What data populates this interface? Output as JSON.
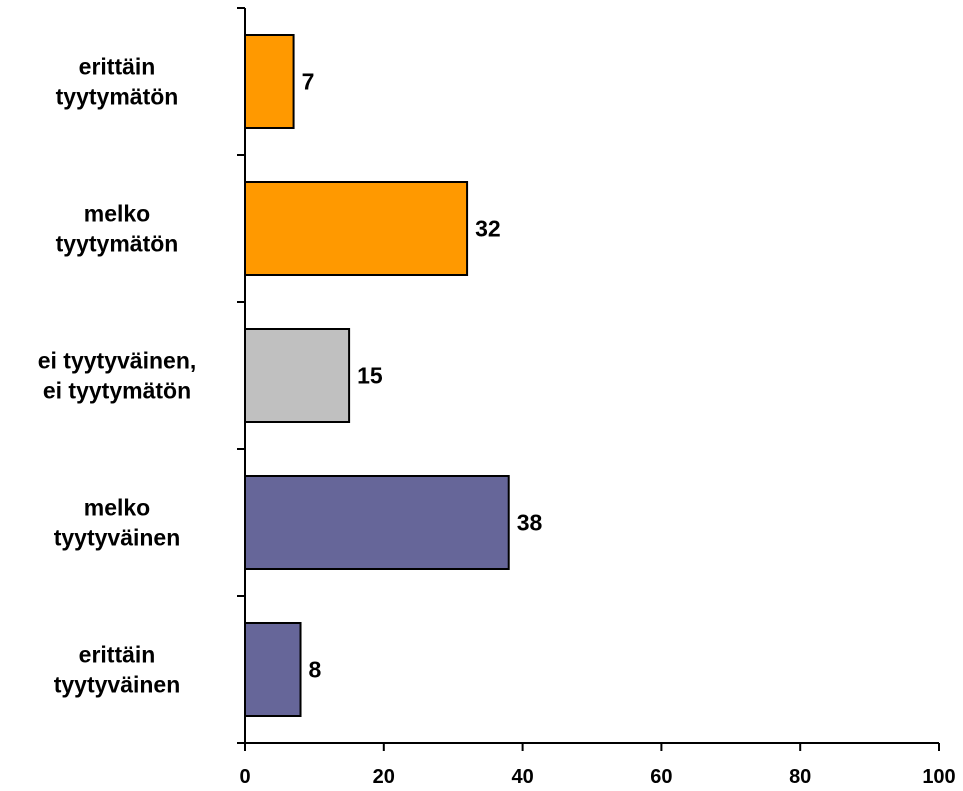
{
  "chart_data": {
    "type": "bar",
    "orientation": "horizontal",
    "categories": [
      [
        "erittäin",
        "tyytymätön"
      ],
      [
        "melko",
        "tyytymätön"
      ],
      [
        "ei tyytyväinen,",
        "ei tyytymätön"
      ],
      [
        "melko",
        "tyytyväinen"
      ],
      [
        "erittäin",
        "tyytyväinen"
      ]
    ],
    "values": [
      7,
      32,
      15,
      38,
      8
    ],
    "colors": [
      "#ff9900",
      "#ff9900",
      "#c0c0c0",
      "#666699",
      "#666699"
    ],
    "xlim": [
      0,
      100
    ],
    "xticks": [
      0,
      20,
      40,
      60,
      80,
      100
    ],
    "title": "",
    "xlabel": "",
    "ylabel": "",
    "grid": false,
    "legend": "none",
    "data_labels": true
  }
}
